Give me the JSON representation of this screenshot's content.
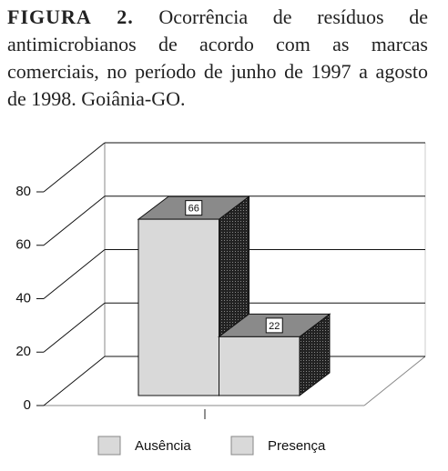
{
  "chart_data": {
    "type": "bar3d",
    "figure_label": "FIGURA 2.",
    "title": "Ocorrência de resíduos de antimicrobianos de acordo com as marcas comerciais, no período de junho de 1997 a agosto de 1998. Goiânia-GO.",
    "categories": [
      null
    ],
    "series": [
      {
        "name": "Ausência",
        "color": "#d9d9d9",
        "values": [
          66
        ]
      },
      {
        "name": "Presença",
        "color": "#d9d9d9",
        "values": [
          22
        ]
      }
    ],
    "ylim": [
      0,
      80
    ],
    "yticks": [
      0,
      20,
      40,
      60,
      80
    ],
    "grid": true
  }
}
